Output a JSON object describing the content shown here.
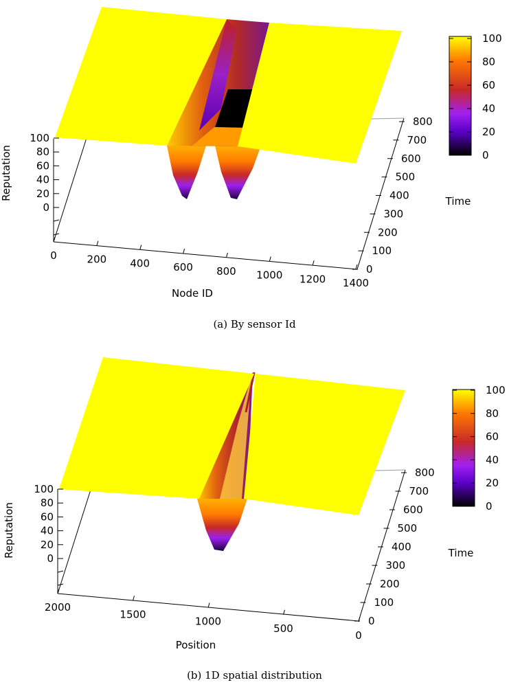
{
  "chart_data": [
    {
      "type": "surface3d",
      "caption": "(a)  By sensor Id",
      "xlabel": "Node ID",
      "ylabel": "Time",
      "zlabel": "Reputation",
      "x_ticks": [
        "0",
        "200",
        "400",
        "600",
        "800",
        "1000",
        "1200",
        "1400"
      ],
      "y_ticks": [
        "0",
        "100",
        "200",
        "300",
        "400",
        "500",
        "600",
        "700",
        "800"
      ],
      "z_ticks": [
        "0",
        "20",
        "40",
        "60",
        "80",
        "100"
      ],
      "colorbar_ticks": [
        "0",
        "20",
        "40",
        "60",
        "80",
        "100"
      ],
      "xlim": [
        0,
        1400
      ],
      "ylim": [
        0,
        800
      ],
      "zlim": [
        0,
        100
      ],
      "colormap": [
        "#000000",
        "#8000ff",
        "#cc2020",
        "#ff8000",
        "#ffff00"
      ],
      "plateau_value": 100,
      "min_value": 10,
      "drops": [
        {
          "node_range": [
            600,
            820
          ],
          "min_reputation": 10,
          "recovers_late": true
        },
        {
          "node_range": [
            860,
            1000
          ],
          "min_reputation": 10,
          "recovers_late": true
        }
      ]
    },
    {
      "type": "surface3d",
      "caption": "(b)  1D spatial distribution",
      "xlabel": "Position",
      "ylabel": "Time",
      "zlabel": "Reputation",
      "x_ticks": [
        "2000",
        "1500",
        "1000",
        "500",
        "0"
      ],
      "y_ticks": [
        "0",
        "100",
        "200",
        "300",
        "400",
        "500",
        "600",
        "700",
        "800"
      ],
      "z_ticks": [
        "0",
        "20",
        "40",
        "60",
        "80",
        "100"
      ],
      "colorbar_ticks": [
        "0",
        "20",
        "40",
        "60",
        "80",
        "100"
      ],
      "xlim": [
        2000,
        0
      ],
      "ylim": [
        0,
        800
      ],
      "zlim": [
        0,
        100
      ],
      "colormap": [
        "#000000",
        "#8000ff",
        "#cc2020",
        "#ff8000",
        "#ffff00"
      ],
      "plateau_value": 100,
      "min_value": 5,
      "drops": [
        {
          "position_range": [
            900,
            1100
          ],
          "min_reputation": 5,
          "recovers_late": true
        }
      ]
    }
  ]
}
